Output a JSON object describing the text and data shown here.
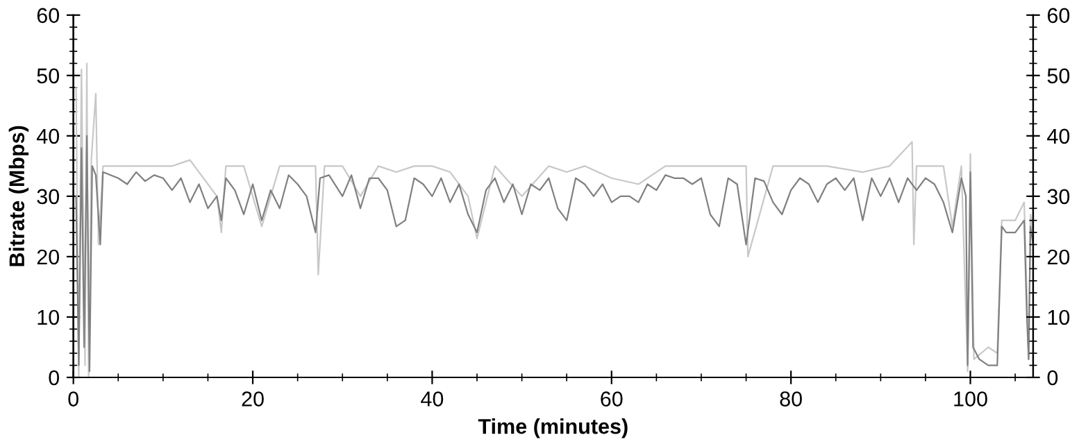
{
  "chart_data": {
    "type": "line",
    "xlabel": "Time (minutes)",
    "ylabel": "Bitrate (Mbps)",
    "xlim": [
      0,
      107
    ],
    "xticks": [
      0,
      20,
      40,
      60,
      80,
      100
    ],
    "ylim": [
      0,
      60
    ],
    "yticks": [
      0,
      10,
      20,
      30,
      40,
      50,
      60
    ],
    "y2lim": [
      0,
      60
    ],
    "y2ticks": [
      0,
      10,
      20,
      30,
      40,
      50,
      60
    ],
    "marker": "none",
    "line_style": "solid",
    "series": [
      {
        "color": "#c8c8c8",
        "x": [
          0.3,
          0.6,
          0.9,
          1.3,
          1.5,
          1.7,
          2.0,
          2.5,
          2.8,
          3.3,
          5,
          7,
          9,
          11,
          13,
          14,
          16,
          16.5,
          17,
          19,
          21,
          23,
          25,
          27,
          27.3,
          28,
          30,
          32,
          34,
          36,
          38,
          40,
          42,
          44,
          45,
          47,
          50,
          53,
          55,
          57,
          60,
          63,
          66,
          69,
          72,
          75,
          75.2,
          78,
          81,
          84,
          88,
          91,
          93.5,
          93.7,
          94,
          97,
          98,
          99,
          99.7,
          100,
          100.4,
          102,
          103,
          103.5,
          105,
          106,
          106.5,
          106.7,
          107
        ],
        "values": [
          48,
          0,
          51,
          2,
          52,
          0,
          36,
          47,
          22,
          35,
          35,
          35,
          35,
          35,
          36,
          34,
          30,
          24,
          35,
          35,
          25,
          35,
          35,
          35,
          17,
          35,
          35,
          30,
          35,
          34,
          35,
          35,
          34,
          30,
          23,
          35,
          30,
          35,
          34,
          35,
          33,
          32,
          35,
          35,
          35,
          35,
          20,
          35,
          35,
          35,
          34,
          35,
          39,
          22,
          35,
          35,
          25,
          35,
          1,
          37,
          3,
          5,
          4,
          26,
          26,
          29,
          3,
          27,
          24
        ]
      },
      {
        "color": "#808080",
        "x": [
          0.3,
          0.6,
          0.9,
          1.2,
          1.5,
          1.8,
          2.1,
          2.5,
          3,
          3.3,
          5,
          6,
          7,
          8,
          9,
          10,
          11,
          12,
          13,
          14,
          15,
          16,
          16.5,
          17,
          18,
          19,
          20,
          21,
          22,
          23,
          24,
          25,
          26,
          27,
          27.5,
          28.5,
          30,
          31,
          32,
          33,
          34,
          35,
          36,
          37,
          38,
          39,
          40,
          41,
          42,
          43,
          44,
          45,
          46,
          47,
          48,
          49,
          50,
          51,
          52,
          53,
          54,
          55,
          56,
          57,
          58,
          59,
          60,
          61,
          62,
          63,
          64,
          65,
          66,
          67,
          68,
          69,
          70,
          71,
          72,
          73,
          74,
          75,
          76,
          77,
          78,
          79,
          80,
          81,
          82,
          83,
          84,
          85,
          86,
          87,
          88,
          89,
          90,
          91,
          92,
          93,
          94,
          95,
          96,
          97,
          98,
          99,
          99.5,
          99.7,
          100,
          100.3,
          101,
          102,
          103,
          103.5,
          104,
          105,
          106,
          106.3,
          106.5,
          106.7,
          107
        ],
        "values": [
          30,
          2,
          38,
          5,
          40,
          1,
          35,
          33.5,
          22,
          34,
          33,
          32,
          34,
          32.5,
          33.5,
          33,
          31,
          33,
          29,
          32,
          28,
          30,
          26,
          33,
          31,
          27,
          32,
          26,
          31,
          28,
          33.5,
          32,
          30,
          24,
          33,
          33.5,
          30,
          33.5,
          28,
          33,
          33,
          31,
          25,
          26,
          33,
          32,
          30,
          33,
          29,
          32,
          27,
          24,
          31,
          33,
          29,
          32,
          27,
          32,
          31,
          33,
          28,
          26,
          33,
          32,
          30,
          32,
          29,
          30,
          30,
          29,
          32,
          31,
          33.5,
          33,
          33,
          32,
          33,
          27,
          25,
          33,
          32,
          22,
          33,
          32.5,
          29,
          27,
          31,
          33,
          32,
          29,
          32,
          33,
          31,
          33,
          26,
          33,
          30,
          33,
          29,
          33,
          31,
          33,
          32,
          29,
          24,
          33,
          30,
          2,
          34,
          5,
          3,
          2,
          2,
          25,
          24,
          24,
          26,
          10,
          3,
          25,
          22
        ]
      }
    ]
  }
}
